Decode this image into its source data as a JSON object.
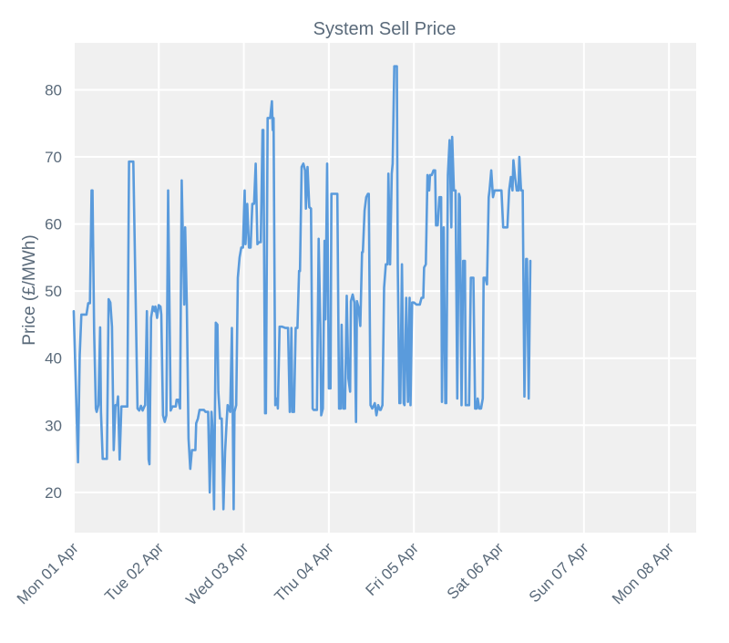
{
  "chart_data": {
    "type": "line",
    "title": "System Sell Price",
    "xlabel": "",
    "ylabel": "Price (£/MWh)",
    "xlim": [
      -0.01,
      7.32
    ],
    "ylim": [
      14.0,
      87.0
    ],
    "yticks": [
      20,
      30,
      40,
      50,
      60,
      70,
      80
    ],
    "xticks": [
      {
        "x": 0,
        "label": "Mon 01 Apr"
      },
      {
        "x": 1,
        "label": "Tue 02 Apr"
      },
      {
        "x": 2,
        "label": "Wed 03 Apr"
      },
      {
        "x": 3,
        "label": "Thu 04 Apr"
      },
      {
        "x": 4,
        "label": "Fri 05 Apr"
      },
      {
        "x": 5,
        "label": "Sat 06 Apr"
      },
      {
        "x": 6,
        "label": "Sun 07 Apr"
      },
      {
        "x": 7,
        "label": "Mon 08 Apr"
      }
    ],
    "grid": true,
    "x_units": "days since Mon 01 Apr 00:00",
    "series": [
      {
        "name": "System Sell Price",
        "color": "#5a9bdc",
        "points": [
          [
            0.0,
            47.0
          ],
          [
            0.05,
            24.5
          ],
          [
            0.07,
            40.5
          ],
          [
            0.09,
            46.5
          ],
          [
            0.13,
            46.5
          ],
          [
            0.15,
            46.5
          ],
          [
            0.17,
            48.2
          ],
          [
            0.19,
            48.2
          ],
          [
            0.21,
            65.0
          ],
          [
            0.22,
            65.0
          ],
          [
            0.24,
            44.0
          ],
          [
            0.26,
            32.5
          ],
          [
            0.27,
            32.0
          ],
          [
            0.29,
            33.0
          ],
          [
            0.31,
            44.6
          ],
          [
            0.32,
            32.0
          ],
          [
            0.34,
            25.0
          ],
          [
            0.37,
            25.0
          ],
          [
            0.39,
            25.0
          ],
          [
            0.41,
            48.8
          ],
          [
            0.43,
            48.3
          ],
          [
            0.45,
            44.7
          ],
          [
            0.47,
            26.3
          ],
          [
            0.49,
            33.0
          ],
          [
            0.51,
            33.0
          ],
          [
            0.52,
            34.3
          ],
          [
            0.54,
            24.9
          ],
          [
            0.56,
            32.8
          ],
          [
            0.58,
            32.8
          ],
          [
            0.61,
            32.8
          ],
          [
            0.63,
            32.8
          ],
          [
            0.65,
            69.3
          ],
          [
            0.7,
            69.3
          ],
          [
            0.75,
            32.5
          ],
          [
            0.77,
            32.2
          ],
          [
            0.79,
            32.9
          ],
          [
            0.81,
            32.2
          ],
          [
            0.83,
            32.8
          ],
          [
            0.84,
            33.0
          ],
          [
            0.86,
            47.0
          ],
          [
            0.88,
            24.9
          ],
          [
            0.89,
            24.2
          ],
          [
            0.91,
            46.0
          ],
          [
            0.93,
            47.7
          ],
          [
            0.95,
            47.0
          ],
          [
            0.96,
            47.7
          ],
          [
            0.98,
            46.0
          ],
          [
            1.0,
            47.9
          ],
          [
            1.02,
            47.7
          ],
          [
            1.03,
            46.5
          ],
          [
            1.05,
            31.5
          ],
          [
            1.07,
            30.5
          ],
          [
            1.09,
            31.5
          ],
          [
            1.11,
            65.0
          ],
          [
            1.14,
            32.2
          ],
          [
            1.16,
            32.8
          ],
          [
            1.2,
            32.8
          ],
          [
            1.21,
            33.8
          ],
          [
            1.23,
            33.8
          ],
          [
            1.25,
            32.5
          ],
          [
            1.27,
            66.5
          ],
          [
            1.3,
            48.0
          ],
          [
            1.31,
            59.5
          ],
          [
            1.33,
            48.0
          ],
          [
            1.35,
            28.0
          ],
          [
            1.37,
            23.5
          ],
          [
            1.39,
            26.3
          ],
          [
            1.43,
            26.3
          ],
          [
            1.44,
            30.3
          ],
          [
            1.46,
            31.0
          ],
          [
            1.48,
            32.3
          ],
          [
            1.51,
            32.3
          ],
          [
            1.53,
            32.3
          ],
          [
            1.55,
            32.0
          ],
          [
            1.58,
            32.0
          ],
          [
            1.6,
            20.0
          ],
          [
            1.62,
            32.0
          ],
          [
            1.63,
            30.0
          ],
          [
            1.65,
            17.5
          ],
          [
            1.67,
            45.3
          ],
          [
            1.69,
            45.0
          ],
          [
            1.7,
            35.0
          ],
          [
            1.72,
            31.0
          ],
          [
            1.74,
            31.0
          ],
          [
            1.76,
            17.5
          ],
          [
            1.78,
            26.0
          ],
          [
            1.8,
            31.0
          ],
          [
            1.81,
            33.0
          ],
          [
            1.84,
            32.0
          ],
          [
            1.86,
            44.5
          ],
          [
            1.88,
            17.5
          ],
          [
            1.89,
            32.0
          ],
          [
            1.91,
            33.0
          ],
          [
            1.93,
            52.0
          ],
          [
            1.95,
            55.0
          ],
          [
            1.97,
            56.5
          ],
          [
            1.99,
            56.5
          ],
          [
            2.01,
            65.0
          ],
          [
            2.02,
            57.0
          ],
          [
            2.04,
            63.0
          ],
          [
            2.06,
            56.5
          ],
          [
            2.08,
            56.5
          ],
          [
            2.1,
            63.0
          ],
          [
            2.12,
            63.0
          ],
          [
            2.14,
            69.0
          ],
          [
            2.16,
            57.0
          ],
          [
            2.18,
            57.3
          ],
          [
            2.2,
            57.3
          ],
          [
            2.22,
            74.0
          ],
          [
            2.23,
            74.0
          ],
          [
            2.25,
            31.8
          ],
          [
            2.26,
            31.8
          ],
          [
            2.28,
            75.8
          ],
          [
            2.31,
            75.8
          ],
          [
            2.33,
            78.3
          ],
          [
            2.34,
            74.0
          ],
          [
            2.35,
            75.8
          ],
          [
            2.37,
            33.0
          ],
          [
            2.39,
            34.0
          ],
          [
            2.4,
            32.5
          ],
          [
            2.42,
            44.7
          ],
          [
            2.45,
            44.7
          ],
          [
            2.49,
            44.5
          ],
          [
            2.52,
            44.5
          ],
          [
            2.54,
            32.0
          ],
          [
            2.56,
            44.5
          ],
          [
            2.57,
            32.0
          ],
          [
            2.59,
            32.0
          ],
          [
            2.61,
            44.5
          ],
          [
            2.63,
            44.5
          ],
          [
            2.65,
            53.0
          ],
          [
            2.66,
            53.0
          ],
          [
            2.68,
            68.5
          ],
          [
            2.7,
            69.0
          ],
          [
            2.72,
            68.0
          ],
          [
            2.73,
            62.3
          ],
          [
            2.75,
            68.5
          ],
          [
            2.77,
            62.5
          ],
          [
            2.79,
            62.3
          ],
          [
            2.81,
            32.5
          ],
          [
            2.82,
            32.3
          ],
          [
            2.84,
            32.3
          ],
          [
            2.86,
            32.3
          ],
          [
            2.88,
            57.8
          ],
          [
            2.9,
            45.0
          ],
          [
            2.91,
            31.5
          ],
          [
            2.93,
            32.5
          ],
          [
            2.95,
            57.5
          ],
          [
            2.96,
            45.8
          ],
          [
            2.98,
            69.0
          ],
          [
            3.0,
            35.5
          ],
          [
            3.02,
            35.5
          ],
          [
            3.03,
            64.5
          ],
          [
            3.07,
            64.5
          ],
          [
            3.1,
            64.5
          ],
          [
            3.12,
            32.5
          ],
          [
            3.14,
            32.5
          ],
          [
            3.15,
            45.0
          ],
          [
            3.17,
            32.5
          ],
          [
            3.19,
            32.5
          ],
          [
            3.21,
            49.3
          ],
          [
            3.23,
            37.0
          ],
          [
            3.25,
            35.0
          ],
          [
            3.26,
            48.5
          ],
          [
            3.28,
            49.5
          ],
          [
            3.3,
            48.3
          ],
          [
            3.32,
            30.5
          ],
          [
            3.33,
            48.5
          ],
          [
            3.35,
            47.5
          ],
          [
            3.37,
            44.8
          ],
          [
            3.39,
            55.8
          ],
          [
            3.4,
            55.8
          ],
          [
            3.42,
            62.0
          ],
          [
            3.44,
            64.0
          ],
          [
            3.46,
            64.5
          ],
          [
            3.47,
            64.5
          ],
          [
            3.49,
            33.0
          ],
          [
            3.51,
            32.5
          ],
          [
            3.53,
            33.0
          ],
          [
            3.54,
            33.3
          ],
          [
            3.56,
            31.5
          ],
          [
            3.58,
            33.0
          ],
          [
            3.6,
            32.3
          ],
          [
            3.61,
            32.3
          ],
          [
            3.63,
            33.0
          ],
          [
            3.65,
            50.5
          ],
          [
            3.67,
            54.0
          ],
          [
            3.69,
            54.0
          ],
          [
            3.7,
            67.5
          ],
          [
            3.72,
            54.0
          ],
          [
            3.74,
            67.5
          ],
          [
            3.75,
            69.0
          ],
          [
            3.77,
            83.5
          ],
          [
            3.8,
            83.5
          ],
          [
            3.81,
            54.0
          ],
          [
            3.83,
            33.3
          ],
          [
            3.84,
            33.3
          ],
          [
            3.86,
            54.0
          ],
          [
            3.88,
            33.3
          ],
          [
            3.89,
            33.0
          ],
          [
            3.91,
            49.0
          ],
          [
            3.93,
            33.5
          ],
          [
            3.95,
            49.0
          ],
          [
            3.96,
            33.0
          ],
          [
            3.98,
            48.3
          ],
          [
            4.0,
            48.3
          ],
          [
            4.03,
            48.0
          ],
          [
            4.07,
            48.0
          ],
          [
            4.09,
            49.0
          ],
          [
            4.11,
            49.0
          ],
          [
            4.12,
            53.5
          ],
          [
            4.14,
            54.0
          ],
          [
            4.16,
            67.3
          ],
          [
            4.18,
            65.0
          ],
          [
            4.19,
            67.3
          ],
          [
            4.21,
            67.3
          ],
          [
            4.23,
            68.0
          ],
          [
            4.25,
            68.0
          ],
          [
            4.26,
            59.8
          ],
          [
            4.28,
            59.8
          ],
          [
            4.3,
            64.0
          ],
          [
            4.32,
            64.0
          ],
          [
            4.33,
            33.5
          ],
          [
            4.35,
            59.5
          ],
          [
            4.37,
            33.3
          ],
          [
            4.38,
            33.3
          ],
          [
            4.4,
            67.3
          ],
          [
            4.42,
            72.5
          ],
          [
            4.44,
            59.5
          ],
          [
            4.45,
            73.0
          ],
          [
            4.47,
            65.0
          ],
          [
            4.49,
            65.0
          ],
          [
            4.51,
            34.0
          ],
          [
            4.53,
            64.5
          ],
          [
            4.54,
            64.0
          ],
          [
            4.56,
            33.0
          ],
          [
            4.58,
            54.5
          ],
          [
            4.6,
            54.5
          ],
          [
            4.61,
            33.0
          ],
          [
            4.63,
            33.0
          ],
          [
            4.65,
            33.0
          ],
          [
            4.67,
            52.0
          ],
          [
            4.7,
            52.0
          ],
          [
            4.72,
            32.5
          ],
          [
            4.74,
            32.5
          ],
          [
            4.75,
            34.0
          ],
          [
            4.77,
            32.5
          ],
          [
            4.79,
            32.5
          ],
          [
            4.81,
            34.0
          ],
          [
            4.82,
            52.0
          ],
          [
            4.84,
            52.0
          ],
          [
            4.86,
            51.0
          ],
          [
            4.88,
            64.0
          ],
          [
            4.89,
            65.0
          ],
          [
            4.91,
            68.0
          ],
          [
            4.93,
            64.0
          ],
          [
            4.95,
            65.0
          ],
          [
            4.96,
            65.0
          ],
          [
            5.0,
            65.0
          ],
          [
            5.03,
            65.0
          ],
          [
            5.05,
            59.5
          ],
          [
            5.1,
            59.5
          ],
          [
            5.12,
            65.0
          ],
          [
            5.14,
            67.0
          ],
          [
            5.16,
            65.0
          ],
          [
            5.17,
            69.5
          ],
          [
            5.19,
            67.0
          ],
          [
            5.21,
            65.0
          ],
          [
            5.23,
            65.0
          ],
          [
            5.24,
            70.0
          ],
          [
            5.26,
            65.0
          ],
          [
            5.28,
            65.0
          ],
          [
            5.3,
            34.3
          ],
          [
            5.32,
            54.8
          ],
          [
            5.33,
            54.8
          ],
          [
            5.35,
            34.0
          ],
          [
            5.37,
            54.5
          ]
        ]
      }
    ]
  }
}
